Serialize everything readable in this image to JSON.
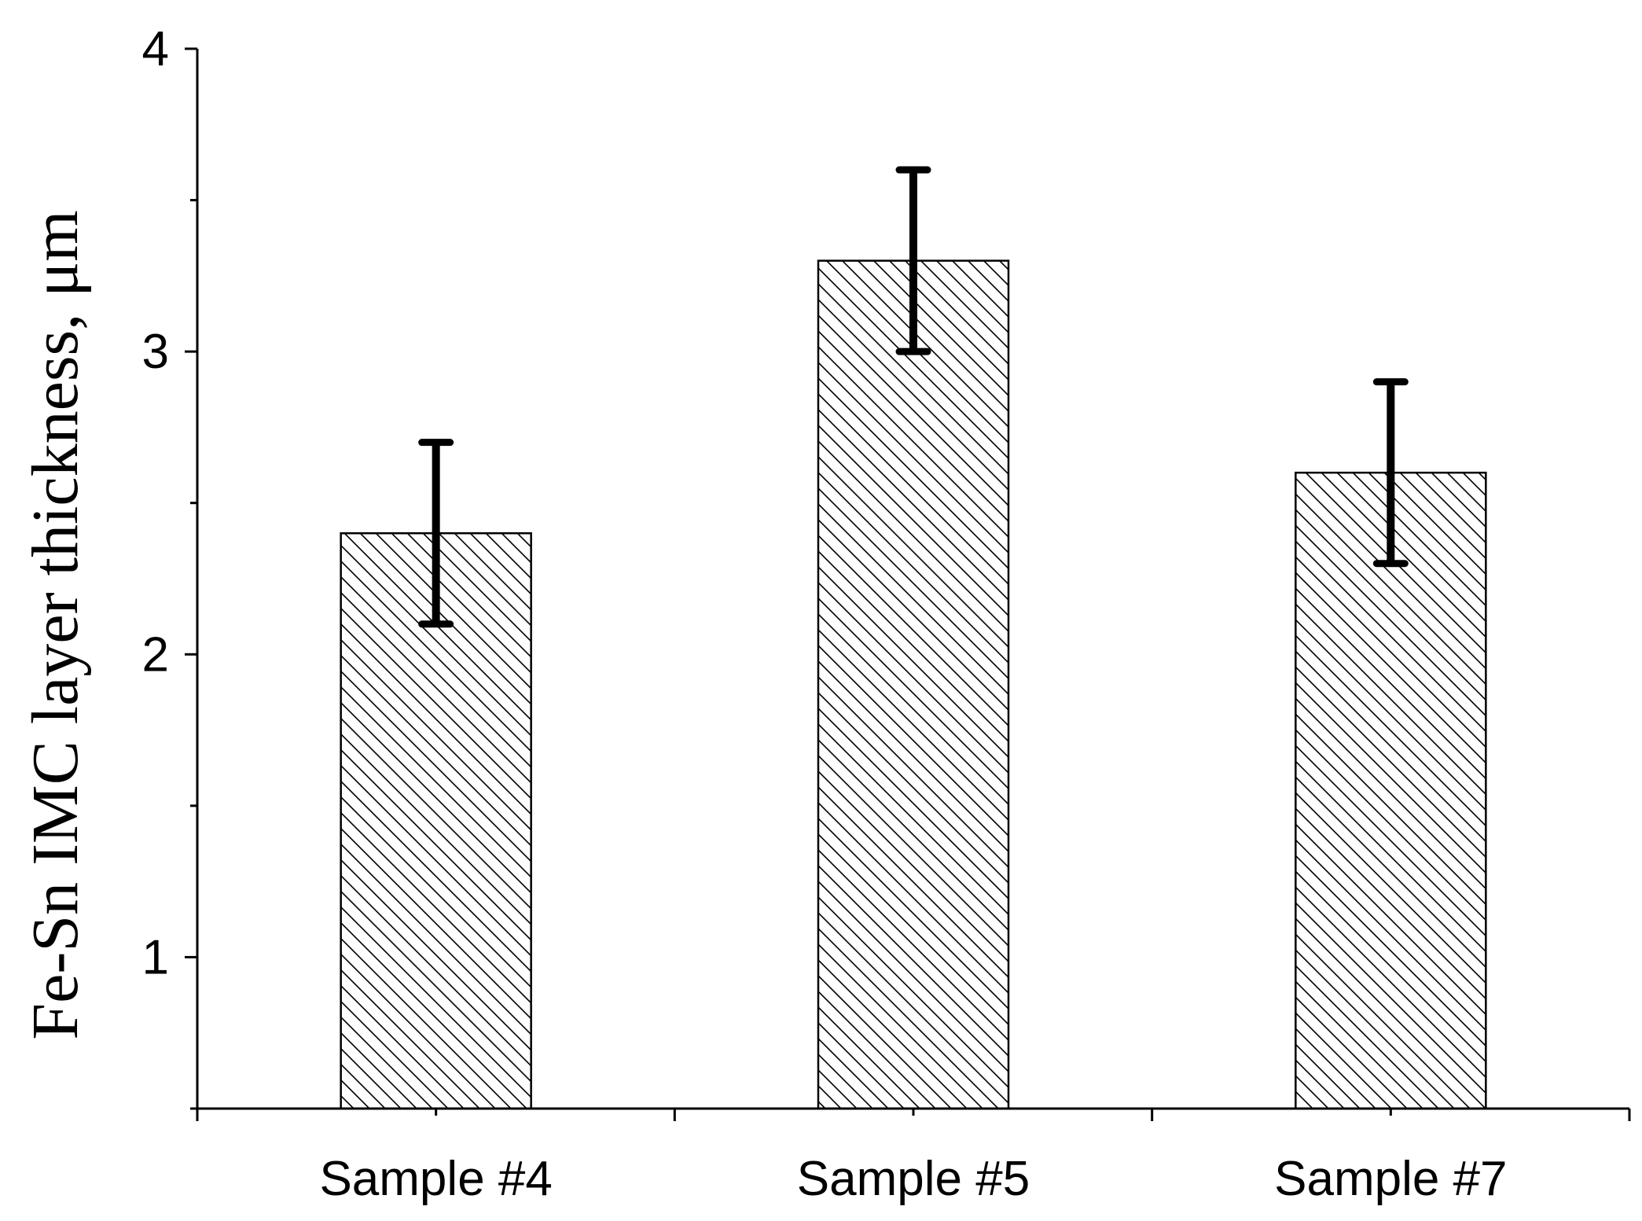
{
  "chart_data": {
    "type": "bar",
    "title": "",
    "xlabel": "",
    "ylabel": "Fe-Sn IMC layer thickness, μm",
    "categories": [
      "Sample #4",
      "Sample #5",
      "Sample #7"
    ],
    "values": [
      2.4,
      3.3,
      2.6
    ],
    "errors": [
      0.3,
      0.3,
      0.3
    ],
    "ylim": [
      0.5,
      4
    ],
    "yticks": [
      1,
      2,
      3,
      4
    ],
    "ytick_labels": [
      "1",
      "2",
      "3",
      "4"
    ],
    "bar_fill": "hatched",
    "bar_color": "#ffffff",
    "line_color": "#000000",
    "grid": false,
    "legend": "none"
  }
}
